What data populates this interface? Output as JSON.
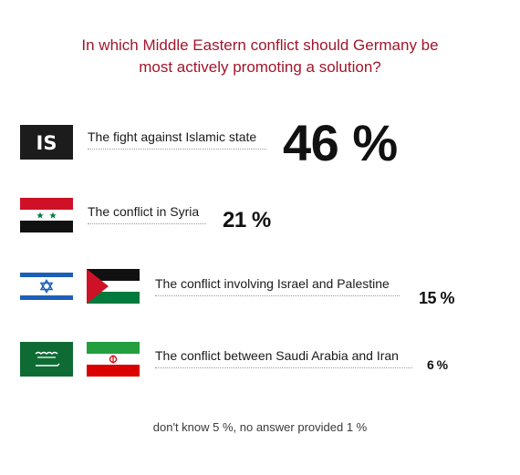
{
  "title_line1": "In which Middle Eastern conflict should Germany be",
  "title_line2": "most actively promoting a solution?",
  "colors": {
    "title": "#a0162c",
    "text": "#1a1a1a",
    "dots": "#9a9a9a"
  },
  "chart_data": {
    "type": "bar",
    "categories": [
      "The fight against Islamic state",
      "The conflict in Syria",
      "The conflict involving Israel and Palestine",
      "The conflict between Saudi Arabia and Iran"
    ],
    "values": [
      46,
      21,
      15,
      6
    ],
    "value_labels": [
      "46 %",
      "21 %",
      "15 %",
      "6 %"
    ],
    "unit": "%",
    "flags": [
      [
        "is-flag"
      ],
      [
        "syria-flag"
      ],
      [
        "israel-flag",
        "palestine-flag"
      ],
      [
        "saudi-arabia-flag",
        "iran-flag"
      ]
    ],
    "is_flag_text": "IS",
    "footnote": "don't know 5 %, no answer provided 1 %"
  }
}
